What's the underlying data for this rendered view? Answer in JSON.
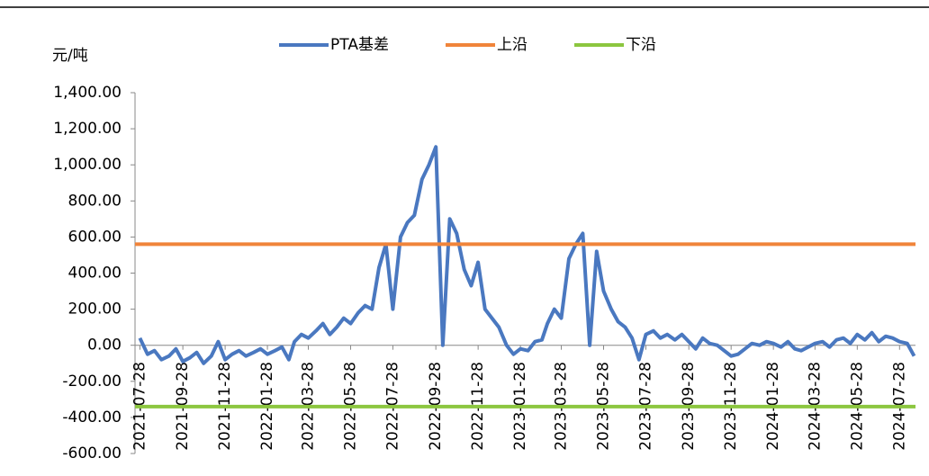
{
  "chart_data": {
    "type": "line",
    "y_label": "元/吨",
    "x": [
      "2021-07-28",
      "2021-08-08",
      "2021-08-18",
      "2021-08-28",
      "2021-09-08",
      "2021-09-18",
      "2021-09-28",
      "2021-10-08",
      "2021-10-18",
      "2021-10-28",
      "2021-11-08",
      "2021-11-18",
      "2021-11-28",
      "2021-12-08",
      "2021-12-18",
      "2021-12-28",
      "2022-01-08",
      "2022-01-18",
      "2022-01-28",
      "2022-02-08",
      "2022-02-18",
      "2022-02-28",
      "2022-03-08",
      "2022-03-18",
      "2022-03-28",
      "2022-04-08",
      "2022-04-18",
      "2022-04-28",
      "2022-05-08",
      "2022-05-18",
      "2022-05-28",
      "2022-06-08",
      "2022-06-18",
      "2022-06-28",
      "2022-07-08",
      "2022-07-18",
      "2022-07-28",
      "2022-08-08",
      "2022-08-18",
      "2022-08-28",
      "2022-09-08",
      "2022-09-18",
      "2022-09-28",
      "2022-10-08",
      "2022-10-18",
      "2022-10-28",
      "2022-11-08",
      "2022-11-18",
      "2022-11-28",
      "2022-12-08",
      "2022-12-18",
      "2022-12-28",
      "2023-01-08",
      "2023-01-18",
      "2023-01-28",
      "2023-02-08",
      "2023-02-18",
      "2023-02-28",
      "2023-03-08",
      "2023-03-18",
      "2023-03-28",
      "2023-04-08",
      "2023-04-18",
      "2023-04-28",
      "2023-05-08",
      "2023-05-18",
      "2023-05-28",
      "2023-06-08",
      "2023-06-18",
      "2023-06-28",
      "2023-07-08",
      "2023-07-18",
      "2023-07-28",
      "2023-08-08",
      "2023-08-18",
      "2023-08-28",
      "2023-09-08",
      "2023-09-18",
      "2023-09-28",
      "2023-10-08",
      "2023-10-18",
      "2023-10-28",
      "2023-11-08",
      "2023-11-18",
      "2023-11-28",
      "2023-12-08",
      "2023-12-18",
      "2023-12-28",
      "2024-01-08",
      "2024-01-18",
      "2024-01-28",
      "2024-02-08",
      "2024-02-18",
      "2024-02-28",
      "2024-03-08",
      "2024-03-18",
      "2024-03-28",
      "2024-04-08",
      "2024-04-18",
      "2024-04-28",
      "2024-05-08",
      "2024-05-18",
      "2024-05-28",
      "2024-06-08",
      "2024-06-18",
      "2024-06-28",
      "2024-07-08",
      "2024-07-18",
      "2024-07-28",
      "2024-08-08",
      "2024-08-18"
    ],
    "series": [
      {
        "name": "PTA基差",
        "color": "#4a78c0",
        "values": [
          40,
          -50,
          -30,
          -80,
          -60,
          -20,
          -90,
          -70,
          -40,
          -100,
          -60,
          20,
          -80,
          -50,
          -30,
          -60,
          -40,
          -20,
          -50,
          -30,
          -10,
          -80,
          20,
          60,
          40,
          80,
          120,
          60,
          100,
          150,
          120,
          180,
          220,
          200,
          430,
          560,
          200,
          600,
          680,
          720,
          920,
          1000,
          1100,
          0,
          700,
          620,
          420,
          330,
          460,
          200,
          150,
          100,
          0,
          -50,
          -20,
          -30,
          20,
          30,
          120,
          200,
          150,
          480,
          560,
          620,
          0,
          520,
          300,
          200,
          130,
          100,
          40,
          -80,
          60,
          80,
          40,
          60,
          30,
          60,
          20,
          -20,
          40,
          10,
          0,
          -30,
          -60,
          -50,
          -20,
          10,
          0,
          20,
          10,
          -10,
          20,
          -20,
          -30,
          -10,
          10,
          20,
          -10,
          30,
          40,
          10,
          60,
          30,
          70,
          20,
          50,
          40,
          20,
          10,
          -60
        ]
      },
      {
        "name": "上沿",
        "color": "#f0843a",
        "value": 560
      },
      {
        "name": "下沿",
        "color": "#8cc63f",
        "value": -340
      }
    ],
    "xlim": [
      "2021-07-21",
      "2024-08-20"
    ],
    "xticks": [
      "2021-07-28",
      "2021-09-28",
      "2021-11-28",
      "2022-01-28",
      "2022-03-28",
      "2022-05-28",
      "2022-07-28",
      "2022-09-28",
      "2022-11-28",
      "2023-01-28",
      "2023-03-28",
      "2023-05-28",
      "2023-07-28",
      "2023-09-28",
      "2023-11-28",
      "2024-01-28",
      "2024-03-28",
      "2024-05-28",
      "2024-07-28"
    ],
    "ylim": [
      -600,
      1400
    ],
    "yticks": [
      {
        "value": 1400,
        "label": "1,400.00"
      },
      {
        "value": 1200,
        "label": "1,200.00"
      },
      {
        "value": 1000,
        "label": "1,000.00"
      },
      {
        "value": 800,
        "label": "800.00"
      },
      {
        "value": 600,
        "label": "600.00"
      },
      {
        "value": 400,
        "label": "400.00"
      },
      {
        "value": 200,
        "label": "200.00"
      },
      {
        "value": 0,
        "label": "0.00"
      },
      {
        "value": -200,
        "label": "-200.00"
      },
      {
        "value": -400,
        "label": "-400.00"
      },
      {
        "value": -600,
        "label": "-600.00"
      }
    ],
    "legend": "top"
  }
}
